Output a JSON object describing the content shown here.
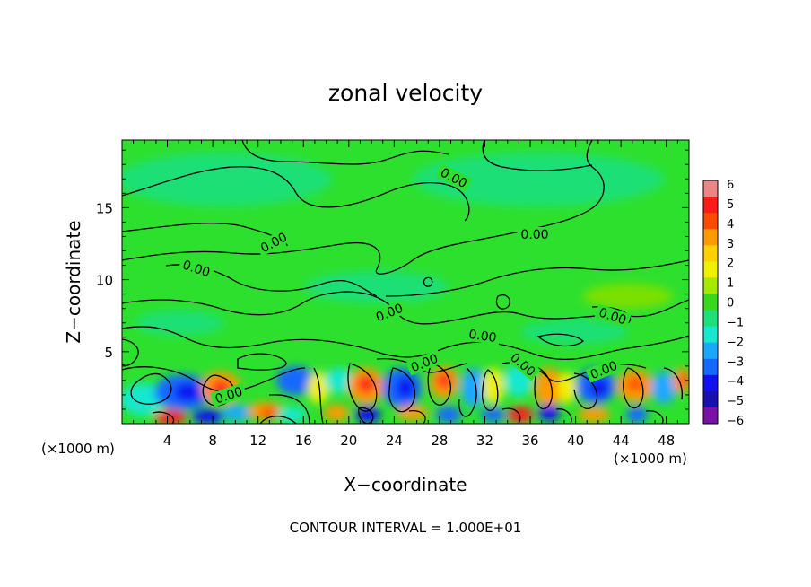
{
  "chart_data": {
    "type": "heatmap",
    "title": "zonal velocity",
    "xlabel": "X−coordinate",
    "ylabel": "Z−coordinate",
    "x_unit": "(×1000 m)",
    "xlim": [
      0,
      50
    ],
    "ylim": [
      0,
      19.7
    ],
    "x_ticks": [
      4,
      8,
      12,
      16,
      20,
      24,
      28,
      32,
      36,
      40,
      44,
      48
    ],
    "y_ticks": [
      5,
      10,
      15
    ],
    "colorbar": {
      "ticks": [
        6,
        5,
        4,
        3,
        2,
        1,
        0,
        -1,
        -2,
        -3,
        -4,
        -5,
        -6
      ],
      "colors": [
        "#ee8585",
        "#ff1a1a",
        "#ff4a00",
        "#ff9a00",
        "#ffd000",
        "#f0f000",
        "#a8e800",
        "#3ad81c",
        "#1ee07a",
        "#16e8d0",
        "#1aa8ff",
        "#1468ff",
        "#1010f0",
        "#1a10b0",
        "#7a10a8"
      ]
    },
    "contour_labels": [
      "0.00",
      "0.00",
      "0.00",
      "0.00",
      "0.00",
      "0.00",
      "0.00",
      "0.00",
      "0.00",
      "0.00",
      "0.00"
    ],
    "footnote": "CONTOUR INTERVAL = 1.000E+01"
  }
}
